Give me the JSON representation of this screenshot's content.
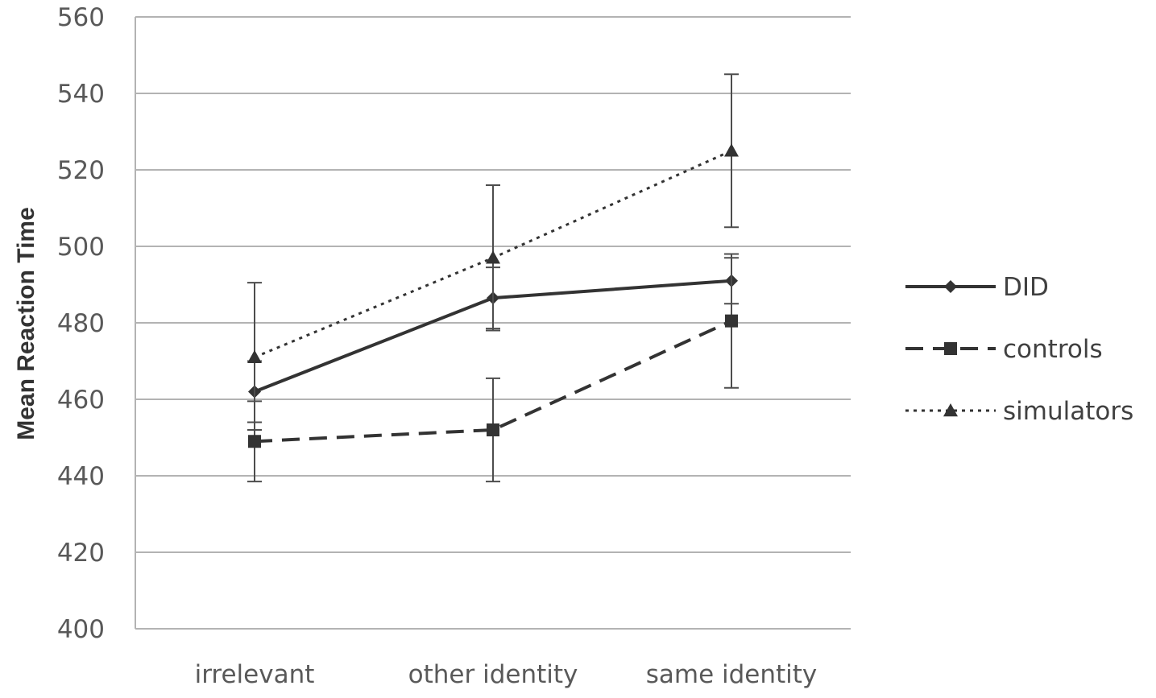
{
  "chart_data": {
    "type": "line",
    "ylabel": "Mean Reaction Time",
    "xlabel": "",
    "ylim": [
      400,
      560
    ],
    "yticks": [
      400,
      420,
      440,
      460,
      480,
      500,
      520,
      540,
      560
    ],
    "grid": "horizontal",
    "legend_position": "right",
    "categories": [
      "irrelevant",
      "other identity",
      "same identity"
    ],
    "series": [
      {
        "name": "DID",
        "marker": "diamond",
        "line_style": "solid",
        "color": "#333333",
        "values": [
          462,
          486.5,
          491
        ],
        "error_low": [
          454,
          478.5,
          485
        ],
        "error_high": [
          470,
          494.5,
          497
        ]
      },
      {
        "name": "controls",
        "marker": "square",
        "line_style": "dashed",
        "color": "#333333",
        "values": [
          449,
          452,
          480.5
        ],
        "error_low": [
          438.5,
          438.5,
          463
        ],
        "error_high": [
          459.5,
          465.5,
          498
        ]
      },
      {
        "name": "simulators",
        "marker": "triangle",
        "line_style": "dotted",
        "color": "#333333",
        "values": [
          471,
          497,
          525
        ],
        "error_low": [
          452,
          478,
          505
        ],
        "error_high": [
          490.5,
          516,
          545
        ]
      }
    ]
  }
}
